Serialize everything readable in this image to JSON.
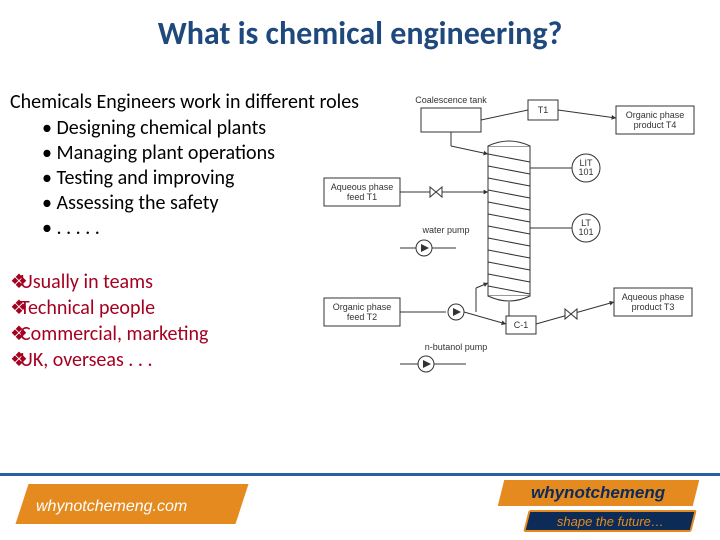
{
  "title": {
    "text": "What is chemical engineering?",
    "color": "#1f497d",
    "fontsize": 32
  },
  "intro": {
    "text": "Chemicals Engineers work in different roles",
    "color": "#000000",
    "fontsize": 20
  },
  "bullets": {
    "marker": "•",
    "color": "#000000",
    "fontsize": 20,
    "items": [
      "Designing chemical plants",
      "Managing plant operations",
      "Testing and improving",
      "Assessing the safety",
      ". . . . ."
    ]
  },
  "diamond_list": {
    "marker": "❖",
    "marker_color": "#a50021",
    "text_color": "#a50021",
    "fontsize": 20,
    "items": [
      "Usually in teams",
      "Technical people",
      "Commercial, marketing",
      "UK, overseas . . ."
    ]
  },
  "diagram": {
    "labels": {
      "coal_tank": "Coalescence tank",
      "t1": "T1",
      "org_prod": "Organic phase\nproduct T4",
      "aq_feed": "Aqueous phase\nfeed T1",
      "lit101": "LIT\n101",
      "lt101": "LT\n101",
      "c1": "C-1",
      "aq_prod": "Aqueous phase\nproduct T3",
      "org_feed": "Organic phase\nfeed T2",
      "wpump": "water pump",
      "bpump": "n-butanol pump"
    },
    "stroke": "#333333",
    "fill": "#ffffff",
    "label_fontsize": 9
  },
  "footer": {
    "line_color": "#2a5fa4",
    "bar_color": "#e58a1f",
    "bar_text": "whynotchemeng.com",
    "bar_text_color": "#ffffff",
    "bar_fontsize": 16,
    "logo": {
      "top_bg": "#e58a1f",
      "top_text": "whynotchemeng",
      "top_text_color": "#0c2b57",
      "top_fontsize": 17,
      "bottom_bg": "#0c2b57",
      "bottom_border": "#e58a1f",
      "bottom_text": "shape the future…",
      "bottom_text_color": "#e58a1f",
      "bottom_fontsize": 13
    }
  }
}
